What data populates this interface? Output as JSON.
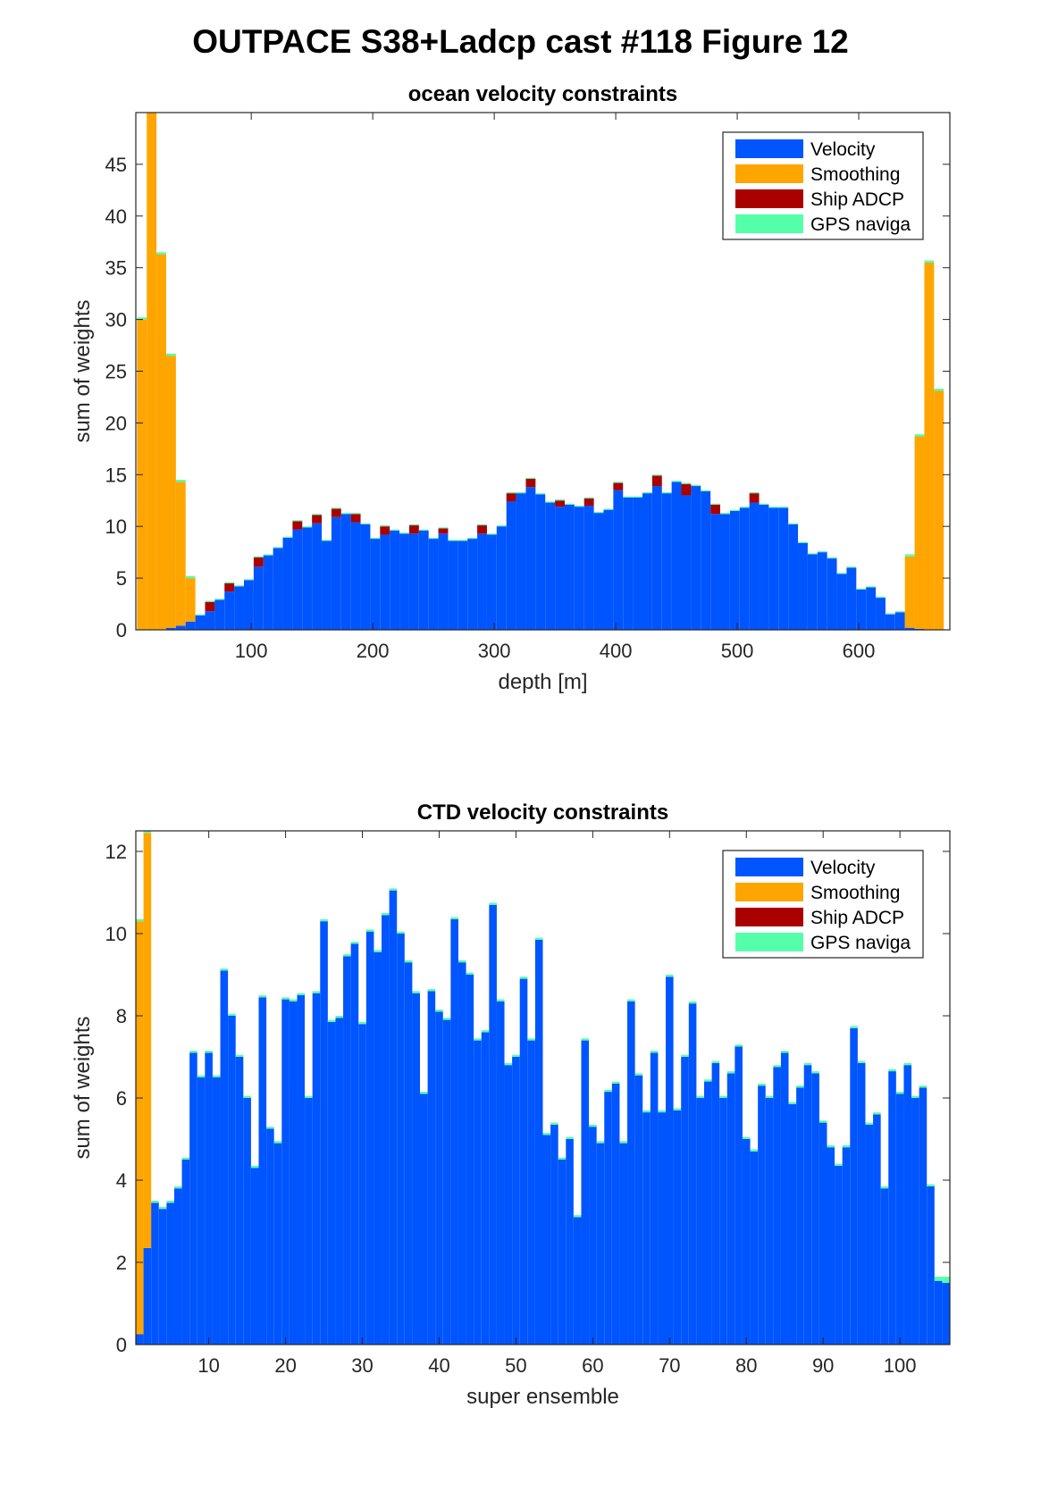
{
  "figure": {
    "title": "OUTPACE S38+Ladcp cast #118  Figure 12"
  },
  "colors": {
    "velocity": "#0055ff",
    "smoothing": "#ffa500",
    "ship_adcp": "#aa0000",
    "gps": "#55ffaa"
  },
  "chart_data": [
    {
      "type": "bar",
      "stacked": true,
      "title": "ocean velocity constraints",
      "xlabel": "depth [m]",
      "ylabel": "sum of weights",
      "xlim": [
        5,
        675
      ],
      "ylim": [
        0,
        50
      ],
      "xticks": [
        100,
        200,
        300,
        400,
        500,
        600
      ],
      "yticks": [
        0,
        5,
        10,
        15,
        20,
        25,
        30,
        35,
        40,
        45
      ],
      "grid": false,
      "legend_position": "top-right",
      "bin_width": 8,
      "x": [
        10,
        18,
        26,
        34,
        42,
        50,
        58,
        66,
        74,
        82,
        90,
        98,
        106,
        114,
        122,
        130,
        138,
        146,
        154,
        162,
        170,
        178,
        186,
        194,
        202,
        210,
        218,
        226,
        234,
        242,
        250,
        258,
        266,
        274,
        282,
        290,
        298,
        306,
        314,
        322,
        330,
        338,
        346,
        354,
        362,
        370,
        378,
        386,
        394,
        402,
        410,
        418,
        426,
        434,
        442,
        450,
        458,
        466,
        474,
        482,
        490,
        498,
        506,
        514,
        522,
        530,
        538,
        546,
        554,
        562,
        570,
        578,
        586,
        594,
        602,
        610,
        618,
        626,
        634,
        642,
        650,
        658,
        666,
        674
      ],
      "series": [
        {
          "name": "Velocity",
          "values": [
            0,
            0,
            0,
            0.2,
            0.4,
            0.8,
            1.4,
            1.8,
            2.9,
            3.7,
            4.2,
            4.8,
            6.1,
            7.2,
            7.9,
            8.9,
            9.7,
            9.9,
            10.3,
            8.6,
            10.9,
            11.2,
            10.4,
            10.2,
            8.8,
            9.2,
            9.6,
            9.3,
            9.3,
            9.6,
            8.8,
            9.3,
            8.6,
            8.6,
            8.8,
            9.3,
            9.2,
            10.0,
            12.4,
            13.2,
            13.8,
            13.1,
            12.3,
            11.9,
            12.1,
            11.9,
            12.0,
            11.3,
            11.6,
            13.5,
            12.8,
            12.8,
            13.2,
            13.9,
            13.2,
            14.3,
            13.0,
            13.9,
            13.4,
            11.2,
            11.2,
            11.5,
            11.8,
            12.3,
            12.1,
            11.8,
            11.8,
            10.2,
            8.4,
            7.3,
            7.5,
            6.9,
            5.4,
            6.0,
            3.9,
            4.1,
            3.1,
            1.5,
            1.7,
            0.2,
            0.1,
            0,
            0,
            0
          ]
        },
        {
          "name": "Smoothing",
          "values": [
            30,
            50,
            36.3,
            26.3,
            13.9,
            4.2,
            0,
            0,
            0,
            0,
            0,
            0,
            0,
            0,
            0,
            0,
            0,
            0,
            0,
            0,
            0,
            0,
            0,
            0,
            0,
            0,
            0,
            0,
            0,
            0,
            0,
            0,
            0,
            0,
            0,
            0,
            0,
            0,
            0,
            0,
            0,
            0,
            0,
            0,
            0,
            0,
            0,
            0,
            0,
            0,
            0,
            0,
            0,
            0,
            0,
            0,
            0,
            0,
            0,
            0,
            0,
            0,
            0,
            0,
            0,
            0,
            0,
            0,
            0,
            0,
            0,
            0,
            0,
            0,
            0,
            0,
            0,
            0,
            0,
            6.9,
            18.6,
            35.5,
            23.1,
            0
          ]
        },
        {
          "name": "Ship ADCP",
          "values": [
            0,
            0,
            0,
            0,
            0,
            0,
            0,
            0.9,
            0,
            0.8,
            0,
            0,
            0.9,
            0,
            0,
            0,
            0.8,
            0,
            0.8,
            0,
            0.8,
            0,
            0.8,
            0,
            0,
            0.8,
            0,
            0,
            0.8,
            0,
            0,
            0.5,
            0,
            0,
            0,
            0.8,
            0,
            0,
            0.8,
            0,
            0.8,
            0,
            0,
            0.6,
            0,
            0,
            0.7,
            0,
            0,
            0.7,
            0,
            0,
            0,
            1.0,
            0,
            0,
            1.1,
            0,
            0,
            0.9,
            0,
            0,
            0,
            0.9,
            0,
            0,
            0,
            0,
            0,
            0,
            0,
            0,
            0,
            0,
            0,
            0,
            0,
            0,
            0,
            0,
            0,
            0,
            0,
            0
          ]
        },
        {
          "name": "GPS naviga",
          "values": [
            0.2,
            0.2,
            0.2,
            0.2,
            0.2,
            0.2,
            0.1,
            0.1,
            0.1,
            0.1,
            0.1,
            0.1,
            0.1,
            0.1,
            0.1,
            0.1,
            0.1,
            0.1,
            0.1,
            0.1,
            0.1,
            0.1,
            0.1,
            0.1,
            0.1,
            0.1,
            0.1,
            0.1,
            0.1,
            0.1,
            0.1,
            0.1,
            0.1,
            0.1,
            0.1,
            0.1,
            0.1,
            0.1,
            0.1,
            0.1,
            0.1,
            0.1,
            0.1,
            0.1,
            0.1,
            0.1,
            0.1,
            0.1,
            0.1,
            0.1,
            0.1,
            0.1,
            0.1,
            0.1,
            0.1,
            0.1,
            0.1,
            0.1,
            0.1,
            0.1,
            0.1,
            0.1,
            0.1,
            0.1,
            0.1,
            0.1,
            0.1,
            0.1,
            0.1,
            0.1,
            0.1,
            0.1,
            0.1,
            0.1,
            0.1,
            0.1,
            0.1,
            0.1,
            0.1,
            0.2,
            0.2,
            0.2,
            0.2,
            0
          ]
        }
      ]
    },
    {
      "type": "bar",
      "stacked": true,
      "title": "CTD velocity constraints",
      "xlabel": "super ensemble",
      "ylabel": "sum of weights",
      "xlim": [
        0.5,
        106.5
      ],
      "ylim": [
        0,
        12.5
      ],
      "xticks": [
        10,
        20,
        30,
        40,
        50,
        60,
        70,
        80,
        90,
        100
      ],
      "yticks": [
        0,
        2,
        4,
        6,
        8,
        10,
        12
      ],
      "grid": false,
      "legend_position": "top-right",
      "bin_width": 1,
      "x": [
        1,
        2,
        3,
        4,
        5,
        6,
        7,
        8,
        9,
        10,
        11,
        12,
        13,
        14,
        15,
        16,
        17,
        18,
        19,
        20,
        21,
        22,
        23,
        24,
        25,
        26,
        27,
        28,
        29,
        30,
        31,
        32,
        33,
        34,
        35,
        36,
        37,
        38,
        39,
        40,
        41,
        42,
        43,
        44,
        45,
        46,
        47,
        48,
        49,
        50,
        51,
        52,
        53,
        54,
        55,
        56,
        57,
        58,
        59,
        60,
        61,
        62,
        63,
        64,
        65,
        66,
        67,
        68,
        69,
        70,
        71,
        72,
        73,
        74,
        75,
        76,
        77,
        78,
        79,
        80,
        81,
        82,
        83,
        84,
        85,
        86,
        87,
        88,
        89,
        90,
        91,
        92,
        93,
        94,
        95,
        96,
        97,
        98,
        99,
        100,
        101,
        102,
        103,
        104,
        105,
        106
      ],
      "series": [
        {
          "name": "Velocity",
          "values": [
            0.25,
            2.35,
            3.45,
            3.3,
            3.45,
            3.8,
            4.5,
            7.1,
            6.5,
            7.1,
            6.5,
            9.1,
            8.0,
            7.0,
            6.0,
            4.3,
            8.45,
            5.25,
            4.9,
            8.4,
            8.35,
            8.5,
            6.0,
            8.55,
            10.3,
            7.85,
            7.95,
            9.45,
            9.75,
            7.8,
            10.05,
            9.55,
            10.45,
            11.05,
            10.0,
            9.3,
            8.55,
            6.1,
            8.6,
            8.1,
            7.9,
            10.35,
            9.3,
            9.0,
            7.4,
            7.6,
            10.7,
            8.35,
            6.8,
            7.0,
            8.9,
            7.4,
            9.85,
            5.1,
            5.35,
            4.5,
            5.0,
            3.1,
            7.4,
            5.3,
            4.9,
            6.15,
            6.35,
            4.9,
            8.35,
            6.55,
            5.65,
            7.1,
            5.65,
            8.95,
            5.7,
            7.0,
            8.3,
            6.0,
            6.4,
            6.85,
            6.0,
            6.6,
            7.25,
            5.0,
            4.7,
            6.3,
            6.0,
            6.75,
            7.1,
            5.85,
            6.25,
            6.8,
            6.6,
            5.4,
            4.8,
            4.35,
            4.8,
            7.7,
            6.85,
            5.35,
            5.6,
            3.8,
            6.65,
            6.1,
            6.8,
            6.0,
            6.25,
            3.85,
            1.55,
            1.5
          ]
        },
        {
          "name": "Smoothing",
          "values": [
            10.05,
            10.1,
            0,
            0,
            0,
            0,
            0,
            0,
            0,
            0,
            0,
            0,
            0,
            0,
            0,
            0,
            0,
            0,
            0,
            0,
            0,
            0,
            0,
            0,
            0,
            0,
            0,
            0,
            0,
            0,
            0,
            0,
            0,
            0,
            0,
            0,
            0,
            0,
            0,
            0,
            0,
            0,
            0,
            0,
            0,
            0,
            0,
            0,
            0,
            0,
            0,
            0,
            0,
            0,
            0,
            0,
            0,
            0,
            0,
            0,
            0,
            0,
            0,
            0,
            0,
            0,
            0,
            0,
            0,
            0,
            0,
            0,
            0,
            0,
            0,
            0,
            0,
            0,
            0,
            0,
            0,
            0,
            0,
            0,
            0,
            0,
            0,
            0,
            0,
            0,
            0,
            0,
            0,
            0,
            0,
            0,
            0,
            0,
            0,
            0,
            0,
            0,
            0,
            0,
            0,
            0
          ]
        },
        {
          "name": "Ship ADCP",
          "values": [
            0,
            0,
            0,
            0,
            0,
            0,
            0,
            0,
            0,
            0,
            0,
            0,
            0,
            0,
            0,
            0,
            0,
            0,
            0,
            0,
            0,
            0,
            0,
            0,
            0,
            0,
            0,
            0,
            0,
            0,
            0,
            0,
            0,
            0,
            0,
            0,
            0,
            0,
            0,
            0,
            0,
            0,
            0,
            0,
            0,
            0,
            0,
            0,
            0,
            0,
            0,
            0,
            0,
            0,
            0,
            0,
            0,
            0,
            0,
            0,
            0,
            0,
            0,
            0,
            0,
            0,
            0,
            0,
            0,
            0,
            0,
            0,
            0,
            0,
            0,
            0,
            0,
            0,
            0,
            0,
            0,
            0,
            0,
            0,
            0,
            0,
            0,
            0,
            0,
            0,
            0,
            0,
            0,
            0,
            0,
            0,
            0,
            0,
            0,
            0,
            0,
            0,
            0,
            0,
            0,
            0
          ]
        },
        {
          "name": "GPS naviga",
          "values": [
            0.05,
            0.05,
            0.05,
            0.05,
            0.05,
            0.05,
            0.05,
            0.05,
            0.05,
            0.05,
            0.05,
            0.05,
            0.05,
            0.05,
            0.05,
            0.05,
            0.05,
            0.05,
            0.05,
            0.05,
            0.05,
            0.05,
            0.05,
            0.05,
            0.05,
            0.05,
            0.05,
            0.05,
            0.05,
            0.05,
            0.05,
            0.05,
            0.05,
            0.05,
            0.05,
            0.05,
            0.05,
            0.05,
            0.05,
            0.05,
            0.05,
            0.05,
            0.05,
            0.05,
            0.05,
            0.05,
            0.05,
            0.05,
            0.05,
            0.05,
            0.05,
            0.05,
            0.05,
            0.05,
            0.05,
            0.05,
            0.05,
            0.05,
            0.05,
            0.05,
            0.05,
            0.05,
            0.05,
            0.05,
            0.05,
            0.05,
            0.05,
            0.05,
            0.05,
            0.05,
            0.05,
            0.05,
            0.05,
            0.05,
            0.05,
            0.05,
            0.05,
            0.05,
            0.05,
            0.05,
            0.05,
            0.05,
            0.05,
            0.05,
            0.05,
            0.05,
            0.05,
            0.05,
            0.05,
            0.05,
            0.05,
            0.05,
            0.05,
            0.05,
            0.05,
            0.05,
            0.05,
            0.05,
            0.05,
            0.05,
            0.05,
            0.05,
            0.05,
            0.05,
            0.1,
            0.15
          ]
        }
      ]
    }
  ]
}
